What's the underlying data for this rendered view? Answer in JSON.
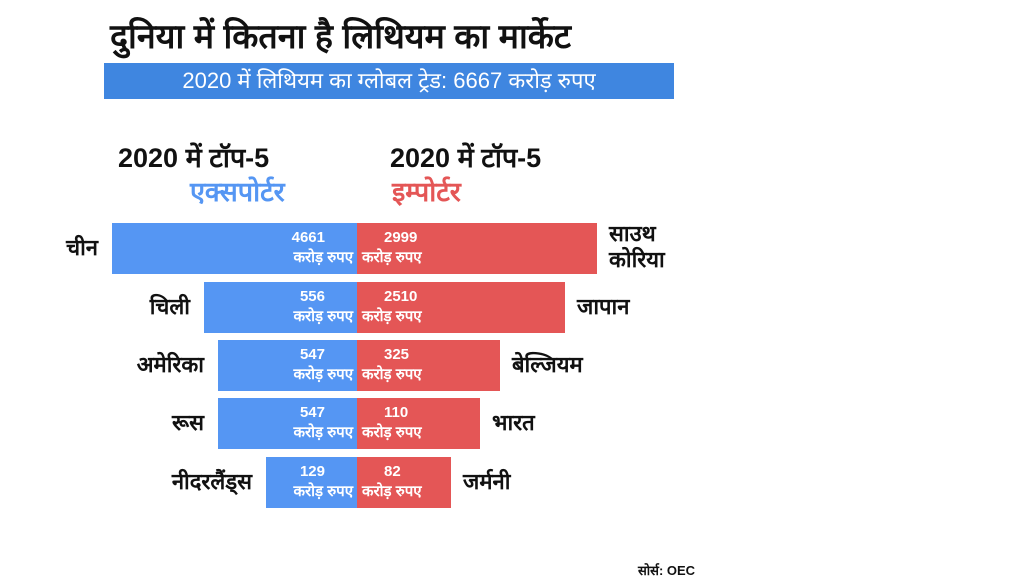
{
  "chart_data": {
    "type": "bar",
    "title": "दुनिया में कितना है लिथियम का मार्केट",
    "subtitle": "2020 में लिथियम का ग्लोबल ट्रेड: 6667 करोड़ रुपए",
    "unit": "करोड़ रुपए",
    "exporters": {
      "heading": "2020 में टॉप-5",
      "label": "एक्सपोर्टर",
      "color": "#5596f3",
      "categories": [
        "चीन",
        "चिली",
        "अमेरिका",
        "रूस",
        "नीदरलैंड्स"
      ],
      "values": [
        4661,
        556,
        547,
        547,
        129
      ]
    },
    "importers": {
      "heading": "2020 में टॉप-5",
      "label": "इम्पोर्टर",
      "color": "#e45656",
      "categories": [
        "साउथ कोरिया",
        "जापान",
        "बेल्जियम",
        "भारत",
        "जर्मनी"
      ],
      "values": [
        2999,
        2510,
        325,
        110,
        82
      ]
    },
    "source": "सोर्स: OEC"
  }
}
